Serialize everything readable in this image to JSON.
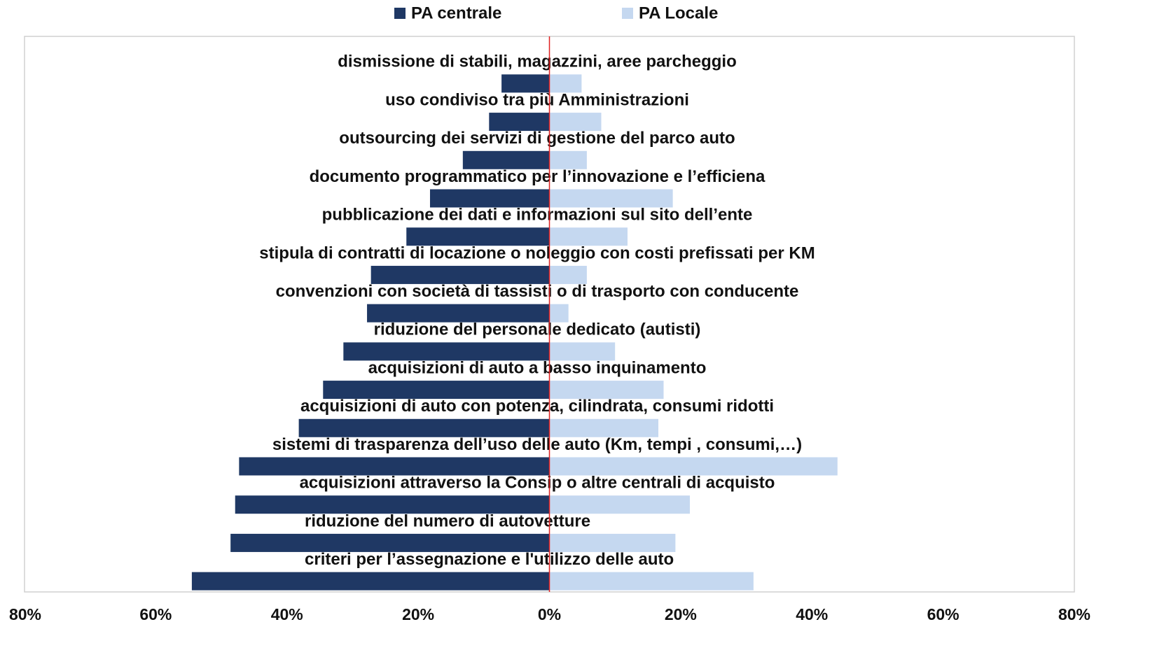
{
  "chart_data": {
    "type": "bar",
    "orientation": "horizontal",
    "categories": [
      "dismissione di stabili, magazzini, aree parcheggio",
      "uso condiviso tra più Amministrazioni",
      "outsourcing dei servizi di gestione del parco auto",
      "documento programmatico per l’innovazione e l’efficiena",
      "pubblicazione dei dati e informazioni sul sito dell’ente",
      "stipula di contratti di locazione o noleggio con costi prefissati per KM",
      "convenzioni con società di tassisti o di trasporto con conducente",
      "riduzione del personale dedicato (autisti)",
      "acquisizioni di auto a basso inquinamento",
      "acquisizioni di auto con potenza, cilindrata, consumi ridotti",
      "sistemi di trasparenza dell’uso delle auto (Km, tempi , consumi,…)",
      "acquisizioni attraverso la Consip o altre centrali di acquisto",
      "riduzione del numero di autovetture",
      "criteri per l’assegnazione e l'utilizzo delle auto"
    ],
    "series": [
      {
        "name": "PA centrale",
        "color": "#1f3864",
        "values": [
          -7.3,
          -9.2,
          -13.2,
          -18.2,
          -21.8,
          -27.2,
          -27.8,
          -31.4,
          -34.5,
          -38.2,
          -47.3,
          -47.9,
          -48.6,
          -54.5
        ]
      },
      {
        "name": "PA Locale",
        "color": "#c5d8f0",
        "values": [
          4.9,
          7.9,
          5.7,
          18.8,
          11.9,
          5.7,
          2.9,
          10.0,
          17.4,
          16.6,
          43.9,
          21.4,
          19.2,
          31.1
        ]
      }
    ],
    "xlim": [
      -80,
      80
    ],
    "xticks": [
      {
        "value": -80,
        "label": "80%"
      },
      {
        "value": -60,
        "label": "60%"
      },
      {
        "value": -40,
        "label": "40%"
      },
      {
        "value": -20,
        "label": "20%"
      },
      {
        "value": 0,
        "label": "0%"
      },
      {
        "value": 20,
        "label": "20%"
      },
      {
        "value": 40,
        "label": "40%"
      },
      {
        "value": 60,
        "label": "60%"
      },
      {
        "value": 80,
        "label": "80%"
      }
    ],
    "zero_line_color": "#e02020",
    "legend": "top"
  }
}
